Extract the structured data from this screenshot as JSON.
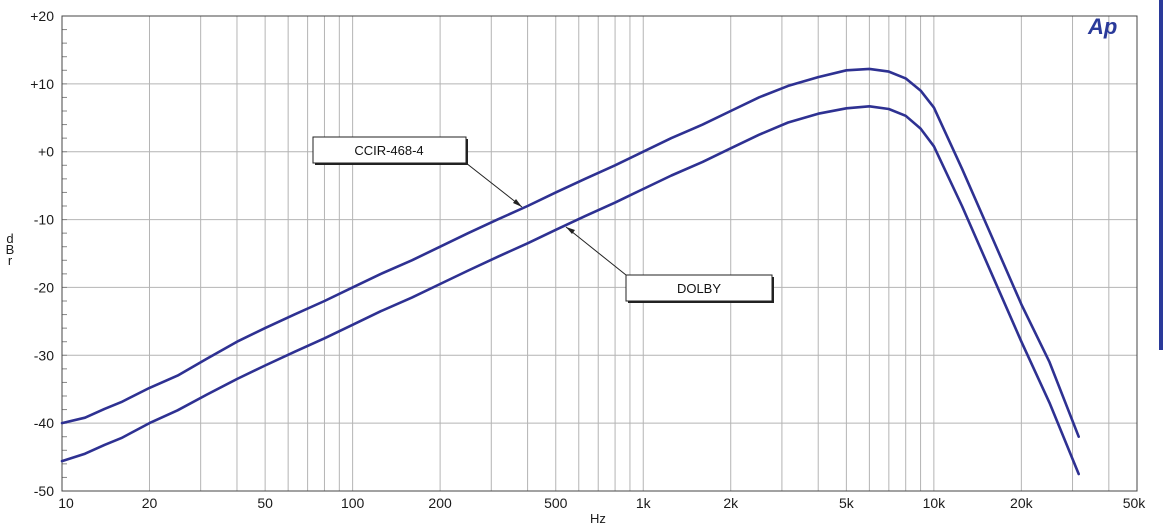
{
  "chart_data": {
    "type": "line",
    "xlabel": "Hz",
    "ylabel": "dBr",
    "x_scale": "log",
    "xlim": [
      10,
      50000
    ],
    "ylim": [
      -50,
      20
    ],
    "grid": true,
    "x_ticks": [
      {
        "value": 10,
        "label": "10"
      },
      {
        "value": 20,
        "label": "20"
      },
      {
        "value": 50,
        "label": "50"
      },
      {
        "value": 100,
        "label": "100"
      },
      {
        "value": 200,
        "label": "200"
      },
      {
        "value": 500,
        "label": "500"
      },
      {
        "value": 1000,
        "label": "1k"
      },
      {
        "value": 2000,
        "label": "2k"
      },
      {
        "value": 5000,
        "label": "5k"
      },
      {
        "value": 10000,
        "label": "10k"
      },
      {
        "value": 20000,
        "label": "20k"
      },
      {
        "value": 50000,
        "label": "50k"
      }
    ],
    "y_ticks": [
      {
        "value": 20,
        "label": "+20"
      },
      {
        "value": 10,
        "label": "+10"
      },
      {
        "value": 0,
        "label": "+0"
      },
      {
        "value": -10,
        "label": "-10"
      },
      {
        "value": -20,
        "label": "-20"
      },
      {
        "value": -30,
        "label": "-30"
      },
      {
        "value": -40,
        "label": "-40"
      },
      {
        "value": -50,
        "label": "-50"
      }
    ],
    "series": [
      {
        "name": "CCIR-468-4",
        "color": "#2e3192",
        "x": [
          10,
          12,
          14,
          16,
          20,
          25,
          31.5,
          40,
          50,
          63,
          80,
          100,
          125,
          160,
          200,
          250,
          315,
          400,
          500,
          630,
          800,
          1000,
          1250,
          1600,
          2000,
          2500,
          3150,
          4000,
          5000,
          6000,
          7000,
          8000,
          9000,
          10000,
          12500,
          16000,
          20000,
          25000,
          31500
        ],
        "values": [
          -40,
          -39.2,
          -37.9,
          -36.9,
          -34.8,
          -33.0,
          -30.5,
          -28.0,
          -26.0,
          -24.0,
          -22.0,
          -20.0,
          -18.0,
          -16.0,
          -14.0,
          -12.0,
          -10.0,
          -8.0,
          -6.0,
          -4.0,
          -2.0,
          0.0,
          2.0,
          4.0,
          6.0,
          8.0,
          9.7,
          11.0,
          12.0,
          12.2,
          11.8,
          10.8,
          9.0,
          6.5,
          -2.5,
          -13.0,
          -22.5,
          -31.0,
          -42.0
        ]
      },
      {
        "name": "DOLBY",
        "color": "#2e3192",
        "x": [
          10,
          12,
          14,
          16,
          20,
          25,
          31.5,
          40,
          50,
          63,
          80,
          100,
          125,
          160,
          200,
          250,
          315,
          400,
          500,
          630,
          800,
          1000,
          1250,
          1600,
          2000,
          2500,
          3150,
          4000,
          5000,
          6000,
          7000,
          8000,
          9000,
          10000,
          12500,
          16000,
          20000,
          25000,
          31500
        ],
        "values": [
          -45.6,
          -44.5,
          -43.2,
          -42.2,
          -40.0,
          -38.1,
          -35.8,
          -33.5,
          -31.5,
          -29.5,
          -27.5,
          -25.5,
          -23.5,
          -21.5,
          -19.5,
          -17.5,
          -15.5,
          -13.5,
          -11.5,
          -9.5,
          -7.5,
          -5.5,
          -3.5,
          -1.5,
          0.5,
          2.5,
          4.3,
          5.6,
          6.4,
          6.7,
          6.3,
          5.3,
          3.4,
          0.8,
          -8.0,
          -18.5,
          -28.0,
          -37.0,
          -47.5
        ]
      }
    ],
    "annotations": [
      {
        "text": "CCIR-468-4",
        "series": 0
      },
      {
        "text": "DOLBY",
        "series": 1
      }
    ],
    "logo": "Ap"
  }
}
